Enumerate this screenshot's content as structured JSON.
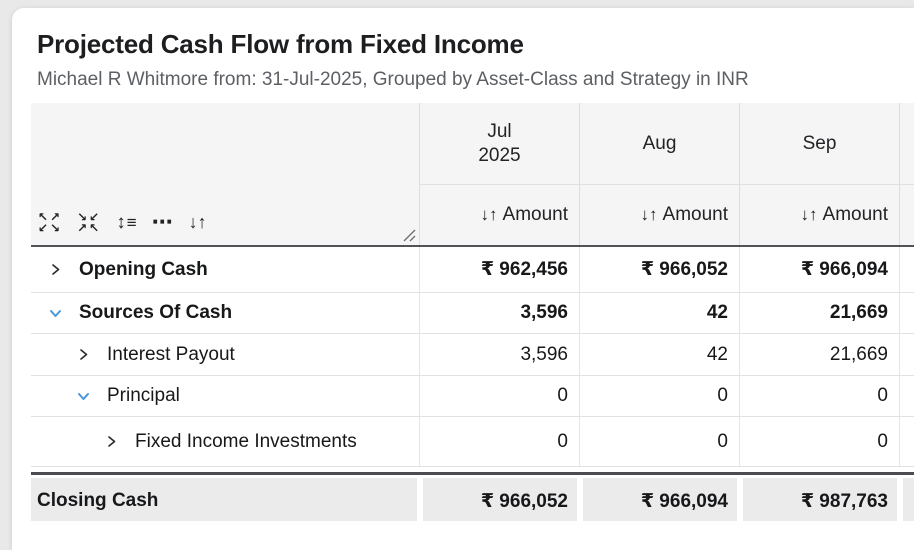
{
  "header": {
    "title": "Projected Cash Flow from Fixed Income",
    "subtitle": "Michael R Whitmore from: 31-Jul-2025, Grouped by Asset-Class and Strategy in INR"
  },
  "icons": {
    "expand_all_top": "↖↗",
    "expand_all_bottom": "↙↘",
    "collapse_all_top": "↘↙",
    "collapse_all_bottom": "↗↖",
    "row_height": "↕",
    "row_height_lines": "≡",
    "more_options": "⋯",
    "sort": "↓↑"
  },
  "table": {
    "columns": [
      {
        "label_lines": [
          "Jul",
          "2025"
        ],
        "amount_label": "Amount"
      },
      {
        "label_lines": [
          "Aug"
        ],
        "amount_label": "Amount"
      },
      {
        "label_lines": [
          "Sep"
        ],
        "amount_label": "Amount"
      }
    ],
    "rows": [
      {
        "label": "Opening Cash",
        "level": 0,
        "expanded": false,
        "bold": true,
        "values": [
          "₹ 962,456",
          "₹ 966,052",
          "₹ 966,094"
        ]
      },
      {
        "label": "Sources Of Cash",
        "level": 0,
        "expanded": true,
        "bold": true,
        "values": [
          "3,596",
          "42",
          "21,669"
        ]
      },
      {
        "label": "Interest Payout",
        "level": 1,
        "expanded": false,
        "bold": false,
        "values": [
          "3,596",
          "42",
          "21,669"
        ]
      },
      {
        "label": "Principal",
        "level": 1,
        "expanded": true,
        "bold": false,
        "values": [
          "0",
          "0",
          "0"
        ]
      },
      {
        "label": "Fixed Income Investments",
        "level": 2,
        "expanded": false,
        "bold": false,
        "values": [
          "0",
          "0",
          "0"
        ]
      }
    ],
    "footer": {
      "label": "Closing Cash",
      "values": [
        "₹ 966,052",
        "₹ 966,094",
        "₹ 987,763"
      ]
    }
  },
  "colors": {
    "accent_blue": "#4a94d8",
    "header_bg": "#f5f5f5",
    "footer_bg": "#ebebec",
    "dark_border": "#4c4d50",
    "light_border": "#e2e2e4"
  }
}
